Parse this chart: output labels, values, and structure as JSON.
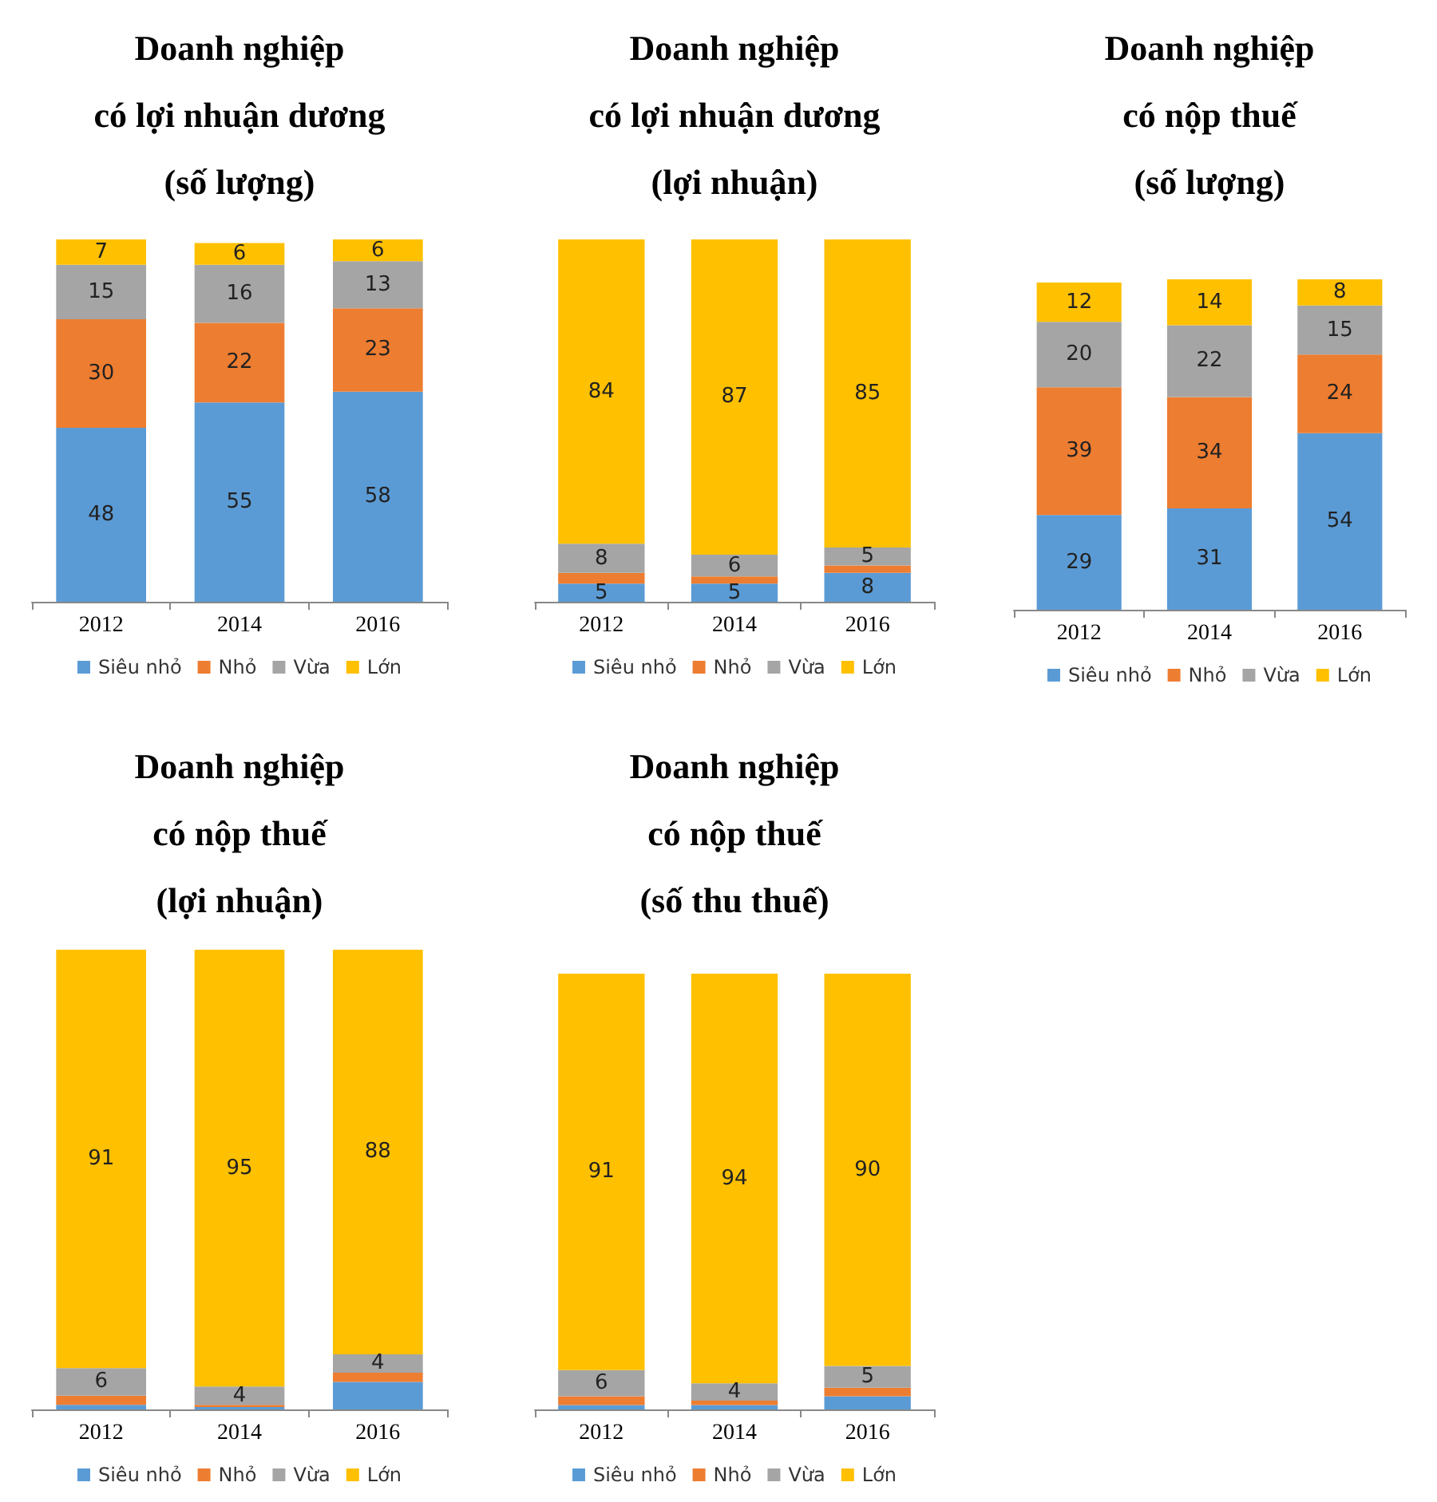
{
  "chart_data": [
    {
      "type": "bar",
      "title": "Doanh nghiệp\ncó lợi nhuận dương\n(số lượng)",
      "categories": [
        "2012",
        "2014",
        "2016"
      ],
      "stacked": true,
      "legend": "bottom",
      "series": [
        {
          "name": "Siêu nhỏ",
          "color": "#5b9bd5",
          "values": [
            48,
            55,
            58
          ],
          "value_labels": [
            "48",
            "55",
            "58"
          ]
        },
        {
          "name": "Nhỏ",
          "color": "#ed7d31",
          "values": [
            30,
            22,
            23
          ],
          "value_labels": [
            "30",
            "22",
            "23"
          ]
        },
        {
          "name": "Vừa",
          "color": "#a5a5a5",
          "values": [
            15,
            16,
            13
          ],
          "value_labels": [
            "15",
            "16",
            "13"
          ]
        },
        {
          "name": "Lớn",
          "color": "#ffc000",
          "values": [
            7,
            6,
            6
          ],
          "value_labels": [
            "7",
            "6",
            "6"
          ]
        }
      ]
    },
    {
      "type": "bar",
      "title": "Doanh nghiệp\ncó lợi nhuận dương\n(lợi nhuận)",
      "categories": [
        "2012",
        "2014",
        "2016"
      ],
      "stacked": true,
      "legend": "bottom",
      "series": [
        {
          "name": "Siêu nhỏ",
          "color": "#5b9bd5",
          "values": [
            5,
            5,
            8
          ],
          "value_labels": [
            "5",
            "5",
            "8"
          ]
        },
        {
          "name": "Nhỏ",
          "color": "#ed7d31",
          "values": [
            3,
            2,
            2
          ],
          "value_labels": [
            null,
            null,
            null
          ]
        },
        {
          "name": "Vừa",
          "color": "#a5a5a5",
          "values": [
            8,
            6,
            5
          ],
          "value_labels": [
            "8",
            "6",
            "5"
          ]
        },
        {
          "name": "Lớn",
          "color": "#ffc000",
          "values": [
            84,
            87,
            85
          ],
          "value_labels": [
            "84",
            "87",
            "85"
          ]
        }
      ]
    },
    {
      "type": "bar",
      "title": "Doanh nghiệp\ncó nộp thuế\n(số lượng)",
      "categories": [
        "2012",
        "2014",
        "2016"
      ],
      "stacked": true,
      "legend": "bottom",
      "series": [
        {
          "name": "Siêu nhỏ",
          "color": "#5b9bd5",
          "values": [
            29,
            31,
            54
          ],
          "value_labels": [
            "29",
            "31",
            "54"
          ]
        },
        {
          "name": "Nhỏ",
          "color": "#ed7d31",
          "values": [
            39,
            34,
            24
          ],
          "value_labels": [
            "39",
            "34",
            "24"
          ]
        },
        {
          "name": "Vừa",
          "color": "#a5a5a5",
          "values": [
            20,
            22,
            15
          ],
          "value_labels": [
            "20",
            "22",
            "15"
          ]
        },
        {
          "name": "Lớn",
          "color": "#ffc000",
          "values": [
            12,
            14,
            8
          ],
          "value_labels": [
            "12",
            "14",
            "8"
          ]
        }
      ]
    },
    {
      "type": "bar",
      "title": "Doanh nghiệp\ncó nộp thuế\n(lợi nhuận)",
      "categories": [
        "2012",
        "2014",
        "2016"
      ],
      "stacked": true,
      "legend": "bottom",
      "series": [
        {
          "name": "Siêu nhỏ",
          "color": "#5b9bd5",
          "values": [
            1,
            0.5,
            6
          ],
          "value_labels": [
            null,
            null,
            null
          ]
        },
        {
          "name": "Nhỏ",
          "color": "#ed7d31",
          "values": [
            2,
            0.5,
            2
          ],
          "value_labels": [
            null,
            null,
            null
          ]
        },
        {
          "name": "Vừa",
          "color": "#a5a5a5",
          "values": [
            6,
            4,
            4
          ],
          "value_labels": [
            "6",
            "4",
            "4"
          ]
        },
        {
          "name": "Lớn",
          "color": "#ffc000",
          "values": [
            91,
            95,
            88
          ],
          "value_labels": [
            "91",
            "95",
            "88"
          ]
        }
      ]
    },
    {
      "type": "bar",
      "title": "Doanh nghiệp\ncó nộp thuế\n(số thu thuế)",
      "categories": [
        "2012",
        "2014",
        "2016"
      ],
      "stacked": true,
      "legend": "bottom",
      "series": [
        {
          "name": "Siêu nhỏ",
          "color": "#5b9bd5",
          "values": [
            1,
            1,
            3
          ],
          "value_labels": [
            null,
            null,
            null
          ]
        },
        {
          "name": "Nhỏ",
          "color": "#ed7d31",
          "values": [
            2,
            1,
            2
          ],
          "value_labels": [
            null,
            null,
            null
          ]
        },
        {
          "name": "Vừa",
          "color": "#a5a5a5",
          "values": [
            6,
            4,
            5
          ],
          "value_labels": [
            "6",
            "4",
            "5"
          ]
        },
        {
          "name": "Lớn",
          "color": "#ffc000",
          "values": [
            91,
            94,
            90
          ],
          "value_labels": [
            "91",
            "94",
            "90"
          ]
        }
      ]
    }
  ]
}
